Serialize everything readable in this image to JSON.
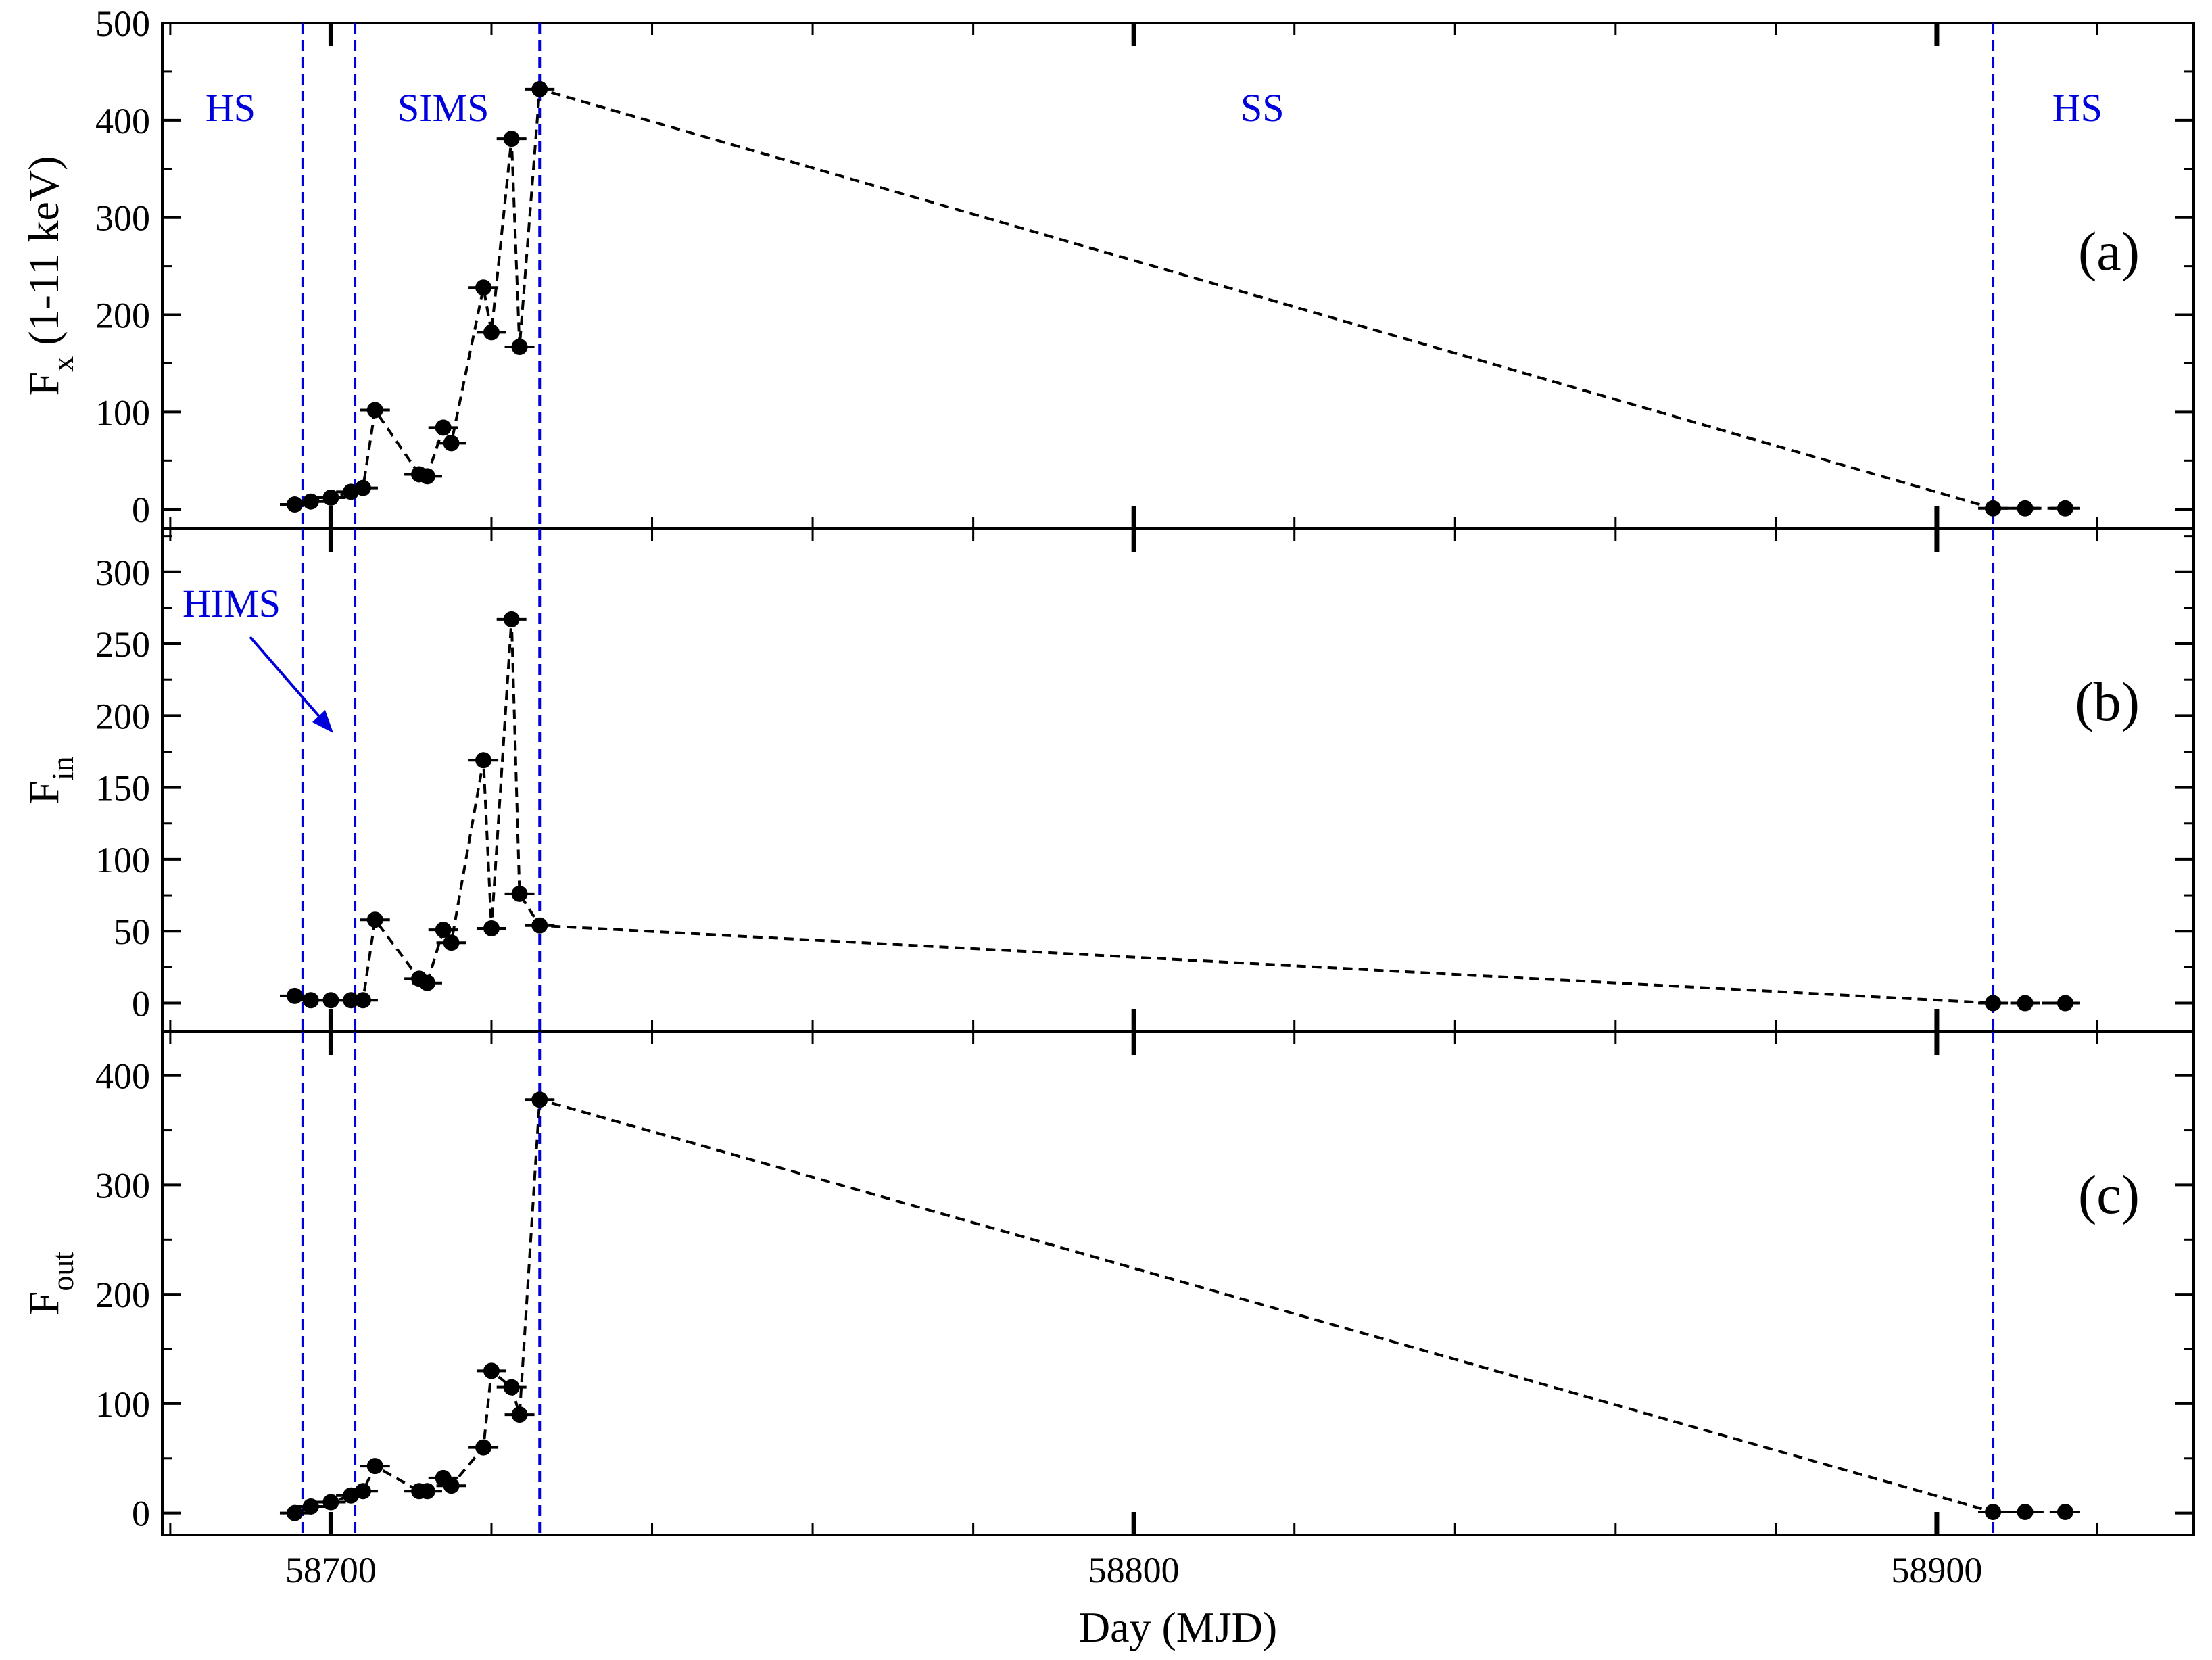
{
  "colors": {
    "data": "#000000",
    "state_line": "#0000dd",
    "frame": "#000000",
    "background": "#ffffff"
  },
  "x_axis": {
    "label": "Day (MJD)",
    "min": 58679,
    "max": 58932,
    "ticks": [
      58700,
      58800,
      58900
    ]
  },
  "state_boundaries": [
    58696.5,
    58703,
    58726,
    58907
  ],
  "chart_data": [
    {
      "type": "scatter",
      "panel_tag": "(a)",
      "ylabel_main": "F",
      "ylabel_sub": "x",
      "ylabel_rest": " (1-11 keV)",
      "ylim": [
        -20,
        500
      ],
      "yticks": [
        0,
        100,
        200,
        300,
        400,
        500
      ],
      "regions": [
        {
          "label": "HS",
          "x": 58687.5
        },
        {
          "label": "SIMS",
          "x": 58714
        },
        {
          "label": "SS",
          "x": 58816
        },
        {
          "label": "HS",
          "x": 58917.5
        }
      ],
      "x": [
        58695.5,
        58697.5,
        58700,
        58702.5,
        58704,
        58705.5,
        58711,
        58712,
        58714,
        58715,
        58719,
        58720,
        58722.5,
        58723.5,
        58726,
        58907,
        58911,
        58916
      ],
      "y": [
        5,
        8,
        12,
        18,
        22,
        102,
        36,
        34,
        84,
        68,
        228,
        182,
        381,
        167,
        432,
        1,
        1,
        1
      ]
    },
    {
      "type": "scatter",
      "panel_tag": "(b)",
      "ylabel_main": "F",
      "ylabel_sub": "in",
      "ylabel_rest": "",
      "ylim": [
        -20,
        330
      ],
      "yticks": [
        0,
        50,
        100,
        150,
        200,
        250,
        300
      ],
      "annotation": {
        "label": "HIMS"
      },
      "x": [
        58695.5,
        58697.5,
        58700,
        58702.5,
        58704,
        58705.5,
        58711,
        58712,
        58714,
        58715,
        58719,
        58720,
        58722.5,
        58723.5,
        58726,
        58907,
        58911,
        58916
      ],
      "y": [
        5,
        2,
        2,
        2,
        2,
        58,
        17,
        14,
        51,
        42,
        169,
        52,
        267,
        76,
        54,
        0,
        0,
        0
      ]
    },
    {
      "type": "scatter",
      "panel_tag": "(c)",
      "ylabel_main": "F",
      "ylabel_sub": "out",
      "ylabel_rest": "",
      "ylim": [
        -20,
        440
      ],
      "yticks": [
        0,
        100,
        200,
        300,
        400
      ],
      "x": [
        58695.5,
        58697.5,
        58700,
        58702.5,
        58704,
        58705.5,
        58711,
        58712,
        58714,
        58715,
        58719,
        58720,
        58722.5,
        58723.5,
        58726,
        58907,
        58911,
        58916
      ],
      "y": [
        0,
        6,
        10,
        16,
        20,
        43,
        20,
        20,
        32,
        25,
        60,
        130,
        115,
        90,
        378,
        1,
        1,
        1
      ]
    }
  ]
}
